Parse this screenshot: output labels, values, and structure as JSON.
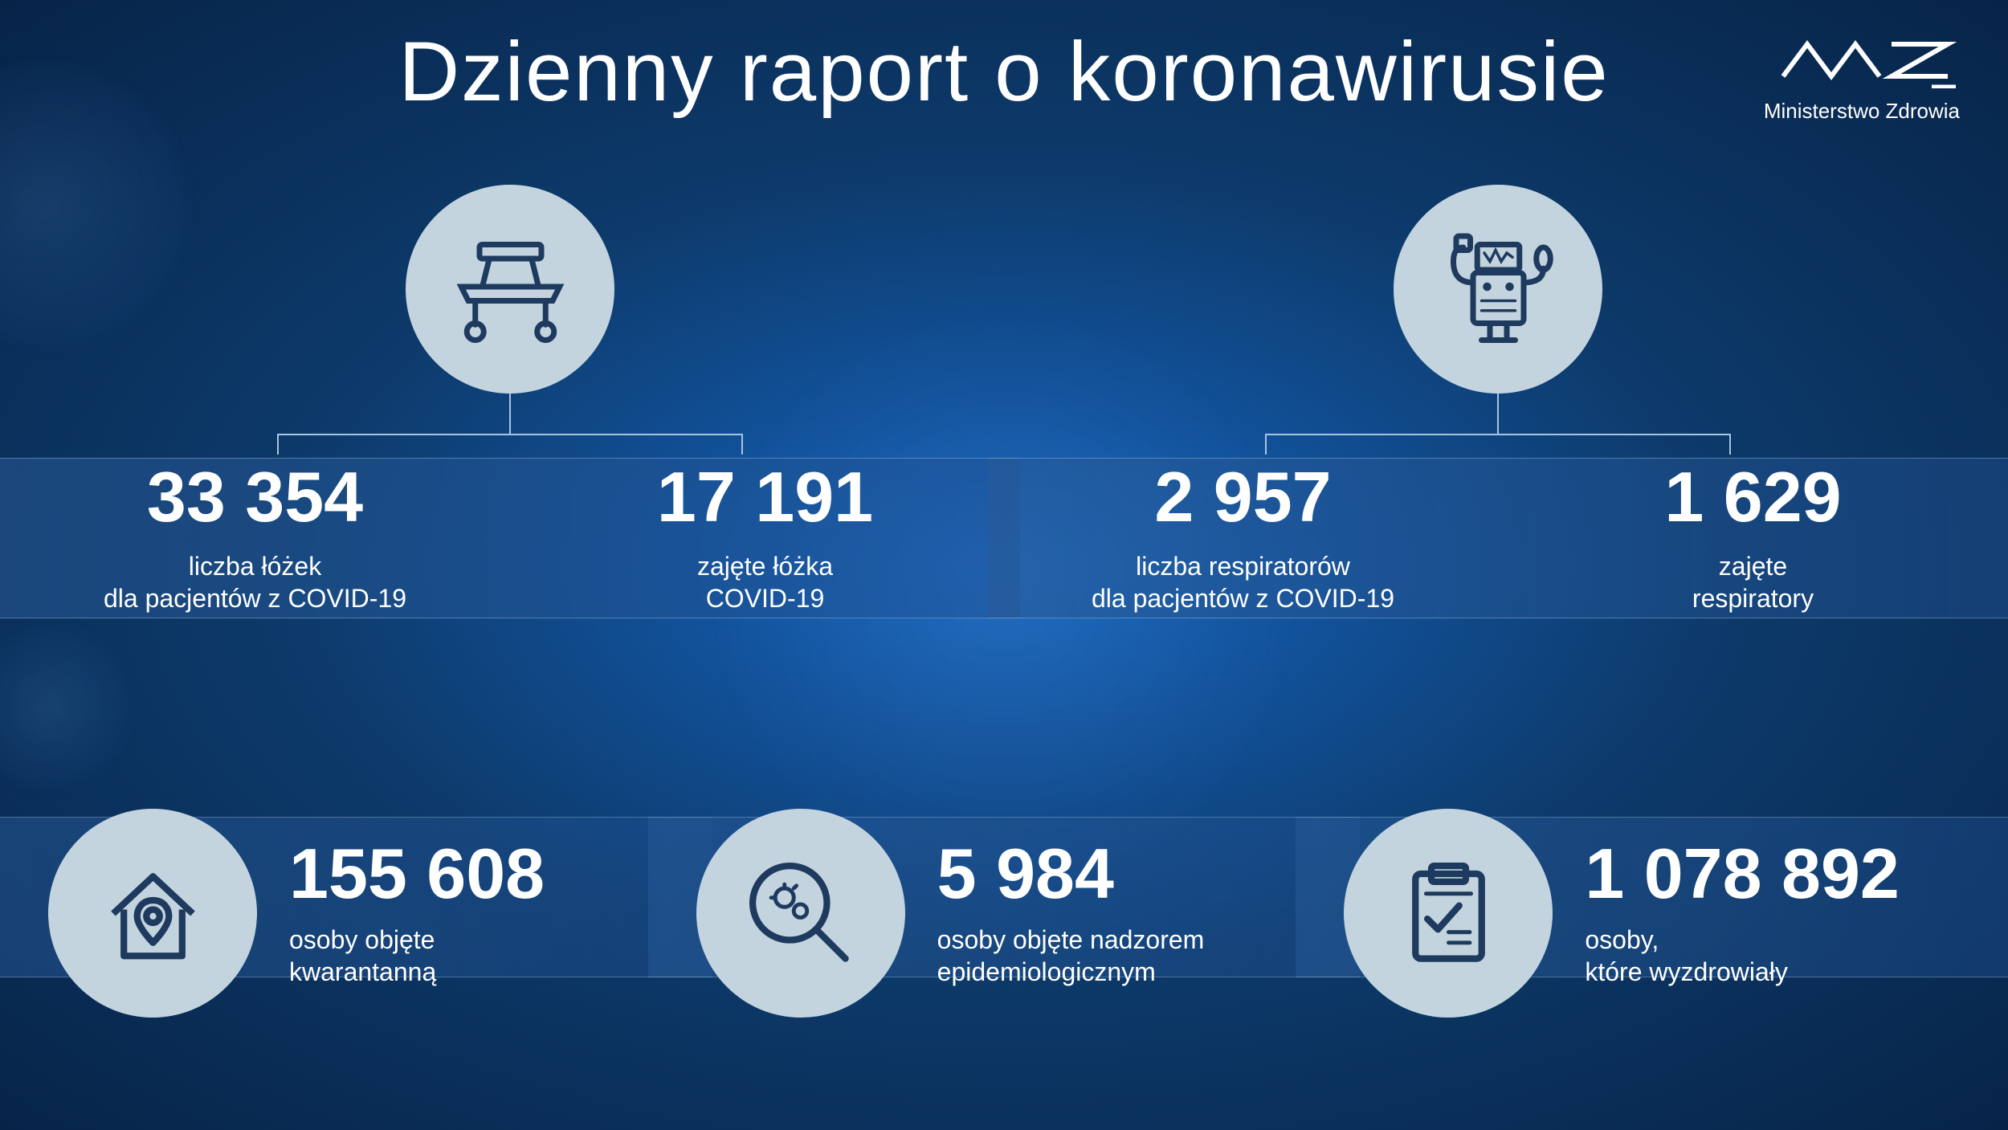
{
  "title": "Dzienny raport o koronawirusie",
  "logo": {
    "mark": "ᴍᴀz",
    "text": "Ministerstwo Zdrowia"
  },
  "colors": {
    "icon_bg": "#c3d4de",
    "icon_stroke": "#1e3a5f",
    "text": "#ffffff"
  },
  "top": {
    "beds": {
      "icon": "hospital-bed",
      "left": {
        "value": "33 354",
        "label": "liczba łóżek\ndla pacjentów z COVID-19"
      },
      "right": {
        "value": "17 191",
        "label": "zajęte łóżka\nCOVID-19"
      }
    },
    "respirators": {
      "icon": "ventilator",
      "left": {
        "value": "2 957",
        "label": "liczba respiratorów\ndla pacjentów z COVID-19"
      },
      "right": {
        "value": "1 629",
        "label": "zajęte\nrespiratory"
      }
    }
  },
  "bottom": {
    "quarantine": {
      "icon": "house-pin",
      "value": "155 608",
      "label": "osoby objęte\nkwarantanną"
    },
    "surveillance": {
      "icon": "magnifier-virus",
      "value": "5 984",
      "label": "osoby objęte nadzorem\nepidemiologicznym"
    },
    "recovered": {
      "icon": "clipboard-check",
      "value": "1 078 892",
      "label": "osoby,\nktóre wyzdrowiały"
    }
  }
}
